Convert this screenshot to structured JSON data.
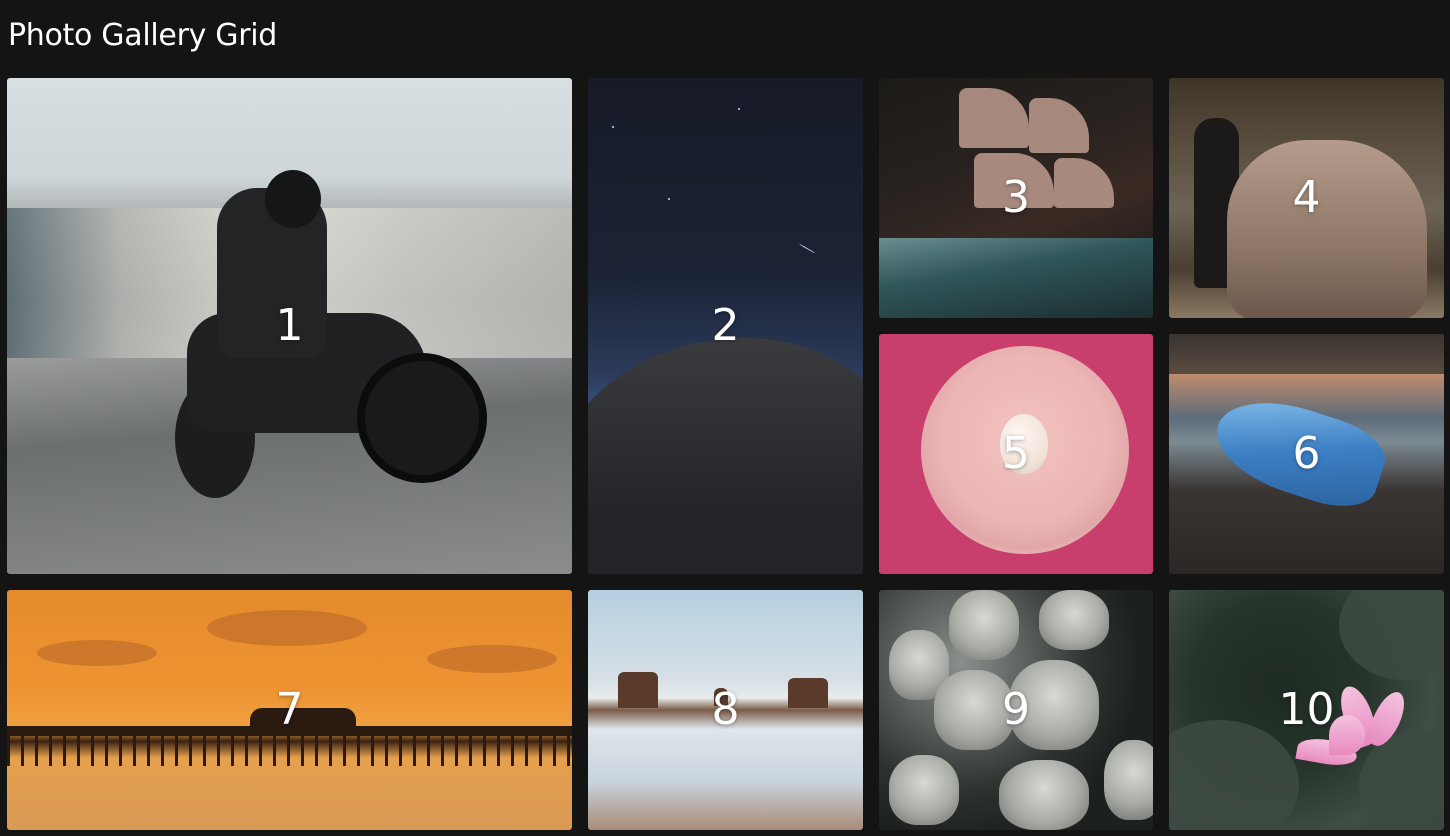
{
  "page": {
    "title": "Photo Gallery Grid"
  },
  "gallery": {
    "tiles": [
      {
        "label": "1",
        "icon": "motorcycle-photo"
      },
      {
        "label": "2",
        "icon": "night-dune-photo"
      },
      {
        "label": "3",
        "icon": "ship-drawing-photo"
      },
      {
        "label": "4",
        "icon": "elephant-photo"
      },
      {
        "label": "5",
        "icon": "egg-plate-photo"
      },
      {
        "label": "6",
        "icon": "jellyfish-photo"
      },
      {
        "label": "7",
        "icon": "pier-sunset-photo"
      },
      {
        "label": "8",
        "icon": "desert-snow-photo"
      },
      {
        "label": "9",
        "icon": "skulls-photo"
      },
      {
        "label": "10",
        "icon": "lotus-photo"
      }
    ]
  },
  "colors": {
    "background": "#141414",
    "title_text": "#ffffff",
    "tile_number": "#ffffff"
  }
}
